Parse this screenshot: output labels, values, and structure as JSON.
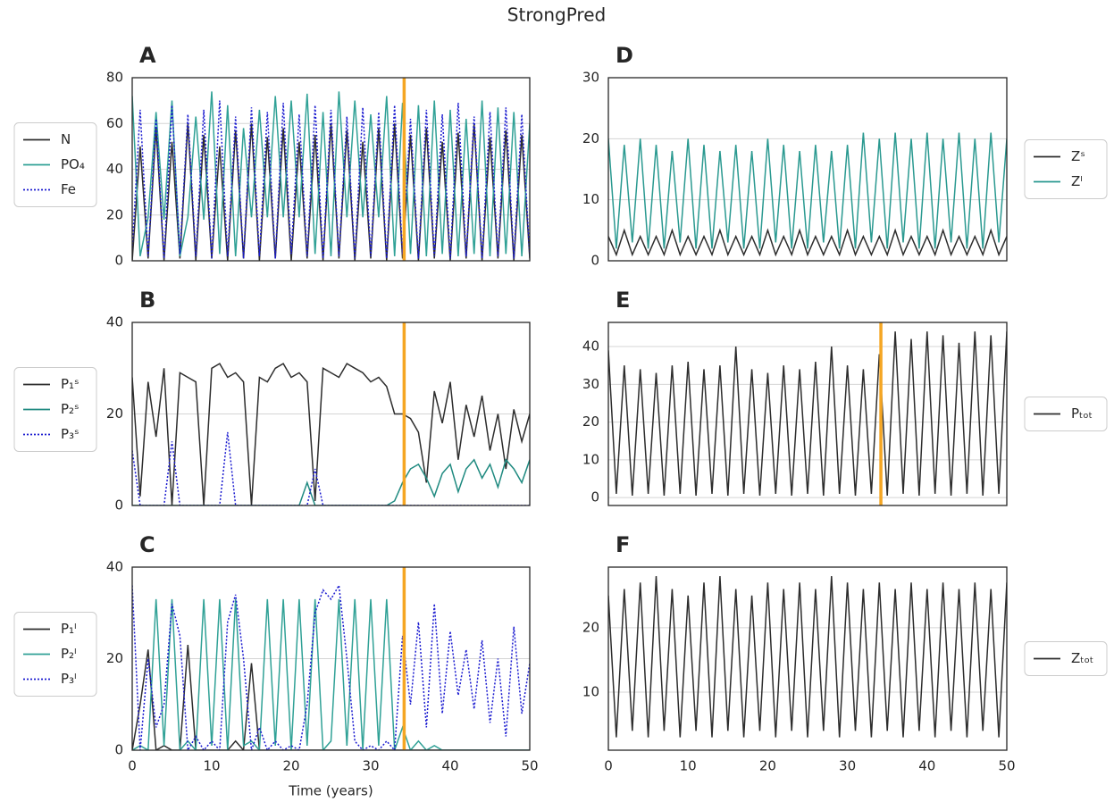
{
  "title": "StrongPred",
  "chart_data": [
    {
      "type": "line",
      "title": "A",
      "legend": "outside left",
      "grid": true,
      "show_xticklabels": false,
      "x": [
        0,
        1,
        2,
        3,
        4,
        5,
        6,
        7,
        8,
        9,
        10,
        11,
        12,
        13,
        14,
        15,
        16,
        17,
        18,
        19,
        20,
        21,
        22,
        23,
        24,
        25,
        26,
        27,
        28,
        29,
        30,
        31,
        32,
        33,
        34,
        35,
        36,
        37,
        38,
        39,
        40,
        41,
        42,
        43,
        44,
        45,
        46,
        47,
        48,
        49,
        50
      ],
      "xlim": [
        0,
        50
      ],
      "ylim": [
        0,
        80
      ],
      "yticks": [
        0,
        20,
        40,
        60,
        80
      ],
      "vline": 34.2,
      "vline_color": "#f5a623",
      "series": [
        {
          "name": "N",
          "color": "#2d2d2d",
          "dash": "solid",
          "values": [
            0,
            50,
            1,
            58,
            0,
            52,
            1,
            60,
            0,
            55,
            1,
            50,
            0,
            57,
            1,
            60,
            0,
            54,
            1,
            58,
            0,
            52,
            1,
            55,
            0,
            60,
            1,
            57,
            0,
            52,
            1,
            58,
            0,
            60,
            1,
            55,
            0,
            58,
            1,
            52,
            0,
            56,
            1,
            60,
            0,
            54,
            1,
            57,
            0,
            55,
            1
          ]
        },
        {
          "name": "PO₄",
          "color": "#30a196",
          "dash": "solid",
          "values": [
            72,
            2,
            19,
            65,
            18,
            70,
            2,
            19,
            63,
            18,
            74,
            3,
            68,
            2,
            58,
            19,
            66,
            19,
            72,
            19,
            70,
            19,
            73,
            3,
            65,
            2,
            74,
            19,
            70,
            19,
            64,
            19,
            72,
            2,
            69,
            3,
            68,
            2,
            70,
            3,
            66,
            2,
            62,
            3,
            70,
            2,
            67,
            3,
            65,
            2,
            60
          ]
        },
        {
          "name": "Fe",
          "color": "#1a1ad0",
          "dash": "dotted",
          "values": [
            5,
            66,
            2,
            62,
            1,
            68,
            3,
            64,
            2,
            66,
            1,
            70,
            2,
            63,
            1,
            67,
            2,
            65,
            1,
            69,
            3,
            64,
            2,
            68,
            1,
            66,
            2,
            63,
            1,
            67,
            2,
            65,
            1,
            68,
            3,
            62,
            1,
            66,
            2,
            64,
            1,
            69,
            2,
            63,
            1,
            65,
            2,
            67,
            1,
            64,
            2
          ]
        }
      ]
    },
    {
      "type": "line",
      "title": "B",
      "legend": "outside left",
      "grid": true,
      "show_xticklabels": false,
      "x": [
        0,
        1,
        2,
        3,
        4,
        5,
        6,
        7,
        8,
        9,
        10,
        11,
        12,
        13,
        14,
        15,
        16,
        17,
        18,
        19,
        20,
        21,
        22,
        23,
        24,
        25,
        26,
        27,
        28,
        29,
        30,
        31,
        32,
        33,
        34,
        35,
        36,
        37,
        38,
        39,
        40,
        41,
        42,
        43,
        44,
        45,
        46,
        47,
        48,
        49,
        50
      ],
      "xlim": [
        0,
        50
      ],
      "ylim": [
        0,
        40
      ],
      "yticks": [
        0,
        20,
        40
      ],
      "vline": 34.2,
      "vline_color": "#f5a623",
      "series": [
        {
          "name": "P₁ˢ",
          "color": "#2d2d2d",
          "dash": "solid",
          "values": [
            28,
            2,
            27,
            15,
            30,
            0,
            29,
            28,
            27,
            0,
            30,
            31,
            28,
            29,
            27,
            0,
            28,
            27,
            30,
            31,
            28,
            29,
            27,
            1,
            30,
            29,
            28,
            31,
            30,
            29,
            27,
            28,
            26,
            20,
            20,
            19,
            16,
            5,
            25,
            18,
            27,
            10,
            22,
            15,
            24,
            12,
            20,
            8,
            21,
            14,
            20
          ]
        },
        {
          "name": "P₂ˢ",
          "color": "#1f8a80",
          "dash": "solid",
          "values": [
            0,
            0,
            0,
            0,
            0,
            0,
            0,
            0,
            0,
            0,
            0,
            0,
            0,
            0,
            0,
            0,
            0,
            0,
            0,
            0,
            0,
            0,
            5,
            0,
            0,
            0,
            0,
            0,
            0,
            0,
            0,
            0,
            0,
            1,
            5,
            8,
            9,
            6,
            2,
            7,
            9,
            3,
            8,
            10,
            6,
            9,
            4,
            10,
            8,
            5,
            10
          ]
        },
        {
          "name": "P₃ˢ",
          "color": "#1a1ad0",
          "dash": "dotted",
          "values": [
            12,
            0,
            0,
            0,
            0,
            14,
            0,
            0,
            0,
            0,
            0,
            0,
            16,
            0,
            0,
            0,
            0,
            0,
            0,
            0,
            0,
            0,
            0,
            8,
            0,
            0,
            0,
            0,
            0,
            0,
            0,
            0,
            0,
            0,
            0,
            0,
            0,
            0,
            0,
            0,
            0,
            0,
            0,
            0,
            0,
            0,
            0,
            0,
            0,
            0,
            0
          ]
        }
      ]
    },
    {
      "type": "line",
      "title": "C",
      "legend": "outside left",
      "grid": true,
      "show_xticklabels": true,
      "xlabel": "Time (years)",
      "x": [
        0,
        1,
        2,
        3,
        4,
        5,
        6,
        7,
        8,
        9,
        10,
        11,
        12,
        13,
        14,
        15,
        16,
        17,
        18,
        19,
        20,
        21,
        22,
        23,
        24,
        25,
        26,
        27,
        28,
        29,
        30,
        31,
        32,
        33,
        34,
        35,
        36,
        37,
        38,
        39,
        40,
        41,
        42,
        43,
        44,
        45,
        46,
        47,
        48,
        49,
        50
      ],
      "xlim": [
        0,
        50
      ],
      "xticks": [
        0,
        10,
        20,
        30,
        40,
        50
      ],
      "ylim": [
        0,
        40
      ],
      "yticks": [
        0,
        20,
        40
      ],
      "vline": 34.2,
      "vline_color": "#f5a623",
      "series": [
        {
          "name": "P₁ˡ",
          "color": "#2d2d2d",
          "dash": "solid",
          "values": [
            0,
            10,
            22,
            0,
            1,
            0,
            0,
            23,
            0,
            0,
            0,
            0,
            0,
            2,
            0,
            19,
            0,
            0,
            0,
            0,
            0,
            0,
            0,
            0,
            0,
            0,
            0,
            0,
            0,
            0,
            0,
            0,
            0,
            0,
            0,
            0,
            0,
            0,
            0,
            0,
            0,
            0,
            0,
            0,
            0,
            0,
            0,
            0,
            0,
            0,
            0
          ]
        },
        {
          "name": "P₂ˡ",
          "color": "#30a196",
          "dash": "solid",
          "values": [
            0,
            1,
            0,
            33,
            1,
            33,
            0,
            2,
            0,
            33,
            1,
            33,
            0,
            33,
            1,
            2,
            0,
            33,
            1,
            33,
            0,
            33,
            1,
            33,
            0,
            2,
            33,
            1,
            33,
            0,
            33,
            1,
            33,
            0,
            5,
            0,
            2,
            0,
            1,
            0,
            0,
            0,
            0,
            0,
            0,
            0,
            0,
            0,
            0,
            0,
            0
          ]
        },
        {
          "name": "P₃ˡ",
          "color": "#1a1ad0",
          "dash": "dotted",
          "values": [
            36,
            0,
            20,
            5,
            10,
            32,
            25,
            0,
            3,
            0,
            2,
            0,
            28,
            34,
            20,
            0,
            5,
            0,
            2,
            0,
            1,
            0,
            10,
            30,
            35,
            33,
            36,
            20,
            2,
            0,
            1,
            0,
            2,
            0,
            25,
            10,
            28,
            5,
            32,
            8,
            26,
            12,
            22,
            9,
            24,
            6,
            20,
            3,
            27,
            8,
            19
          ]
        }
      ]
    },
    {
      "type": "line",
      "title": "D",
      "legend": "outside right",
      "grid": true,
      "show_xticklabels": false,
      "x": [
        0,
        1,
        2,
        3,
        4,
        5,
        6,
        7,
        8,
        9,
        10,
        11,
        12,
        13,
        14,
        15,
        16,
        17,
        18,
        19,
        20,
        21,
        22,
        23,
        24,
        25,
        26,
        27,
        28,
        29,
        30,
        31,
        32,
        33,
        34,
        35,
        36,
        37,
        38,
        39,
        40,
        41,
        42,
        43,
        44,
        45,
        46,
        47,
        48,
        49,
        50
      ],
      "xlim": [
        0,
        50
      ],
      "ylim": [
        0,
        30
      ],
      "yticks": [
        0,
        10,
        20,
        30
      ],
      "series": [
        {
          "name": "Zˢ",
          "color": "#2d2d2d",
          "dash": "solid",
          "values": [
            4,
            1,
            5,
            1,
            4,
            1,
            4,
            1,
            5,
            1,
            4,
            1,
            4,
            1,
            5,
            1,
            4,
            1,
            4,
            1,
            5,
            1,
            4,
            1,
            5,
            1,
            4,
            1,
            4,
            1,
            5,
            1,
            4,
            1,
            4,
            1,
            5,
            1,
            4,
            1,
            4,
            1,
            5,
            1,
            4,
            1,
            4,
            1,
            5,
            1,
            4
          ]
        },
        {
          "name": "Zˡ",
          "color": "#2a9990",
          "dash": "solid",
          "values": [
            20,
            2,
            19,
            3,
            20,
            2,
            19,
            2,
            18,
            3,
            20,
            2,
            19,
            2,
            18,
            3,
            19,
            2,
            18,
            2,
            20,
            3,
            19,
            2,
            18,
            2,
            19,
            3,
            18,
            2,
            19,
            2,
            21,
            3,
            20,
            2,
            21,
            3,
            20,
            2,
            21,
            2,
            20,
            3,
            21,
            2,
            20,
            2,
            21,
            3,
            20
          ]
        }
      ]
    },
    {
      "type": "line",
      "title": "E",
      "legend": "outside right",
      "grid": true,
      "show_xticklabels": false,
      "x": [
        0,
        1,
        2,
        3,
        4,
        5,
        6,
        7,
        8,
        9,
        10,
        11,
        12,
        13,
        14,
        15,
        16,
        17,
        18,
        19,
        20,
        21,
        22,
        23,
        24,
        25,
        26,
        27,
        28,
        29,
        30,
        31,
        32,
        33,
        34,
        35,
        36,
        37,
        38,
        39,
        40,
        41,
        42,
        43,
        44,
        45,
        46,
        47,
        48,
        49,
        50
      ],
      "xlim": [
        0,
        50
      ],
      "ylim": [
        -2.1,
        46.4
      ],
      "yticks": [
        0,
        10,
        20,
        30,
        40
      ],
      "vline": 34.2,
      "vline_color": "#f5a623",
      "series": [
        {
          "name": "Pₜₒₜ",
          "color": "#2d2d2d",
          "dash": "solid",
          "values": [
            39,
            1,
            35,
            0.5,
            34,
            1,
            33,
            0.5,
            35,
            1,
            36,
            0.5,
            34,
            1,
            35,
            0.5,
            40,
            1,
            34,
            0.5,
            33,
            1,
            35,
            0.5,
            34,
            1,
            36,
            0.5,
            40,
            1,
            35,
            0.5,
            34,
            1,
            38,
            0.5,
            44,
            1,
            42,
            0.5,
            44,
            1,
            43,
            0.5,
            41,
            1,
            44,
            0.5,
            43,
            1,
            44
          ]
        }
      ]
    },
    {
      "type": "line",
      "title": "F",
      "legend": "outside right",
      "grid": true,
      "show_xticklabels": true,
      "x": [
        0,
        1,
        2,
        3,
        4,
        5,
        6,
        7,
        8,
        9,
        10,
        11,
        12,
        13,
        14,
        15,
        16,
        17,
        18,
        19,
        20,
        21,
        22,
        23,
        24,
        25,
        26,
        27,
        28,
        29,
        30,
        31,
        32,
        33,
        34,
        35,
        36,
        37,
        38,
        39,
        40,
        41,
        42,
        43,
        44,
        45,
        46,
        47,
        48,
        49,
        50
      ],
      "xlim": [
        0,
        50
      ],
      "xticks": [
        0,
        10,
        20,
        30,
        40,
        50
      ],
      "ylim": [
        1,
        29.4
      ],
      "yticks": [
        10,
        20
      ],
      "series": [
        {
          "name": "Zₜₒₜ",
          "color": "#2d2d2d",
          "dash": "solid",
          "values": [
            25,
            3,
            26,
            4,
            27,
            3,
            28,
            4,
            26,
            3,
            25,
            4,
            27,
            3,
            28,
            4,
            26,
            3,
            25,
            4,
            27,
            3,
            26,
            4,
            27,
            3,
            26,
            4,
            28,
            3,
            27,
            4,
            26,
            3,
            27,
            4,
            26,
            3,
            27,
            4,
            26,
            3,
            27,
            4,
            26,
            3,
            27,
            4,
            26,
            3,
            27
          ]
        }
      ]
    }
  ]
}
